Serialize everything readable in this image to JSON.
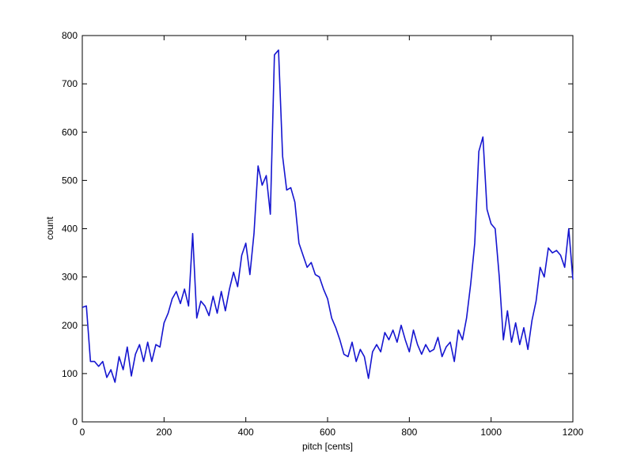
{
  "chart_data": {
    "type": "line",
    "xlabel": "pitch [cents]",
    "ylabel": "count",
    "x": [
      0,
      10,
      20,
      30,
      40,
      50,
      60,
      70,
      80,
      90,
      100,
      110,
      120,
      130,
      140,
      150,
      160,
      170,
      180,
      190,
      200,
      210,
      220,
      230,
      240,
      250,
      260,
      270,
      280,
      290,
      300,
      310,
      320,
      330,
      340,
      350,
      360,
      370,
      380,
      390,
      400,
      410,
      420,
      430,
      440,
      450,
      460,
      470,
      480,
      490,
      500,
      510,
      520,
      530,
      540,
      550,
      560,
      570,
      580,
      590,
      600,
      610,
      620,
      630,
      640,
      650,
      660,
      670,
      680,
      690,
      700,
      710,
      720,
      730,
      740,
      750,
      760,
      770,
      780,
      790,
      800,
      810,
      820,
      830,
      840,
      850,
      860,
      870,
      880,
      890,
      900,
      910,
      920,
      930,
      940,
      950,
      960,
      970,
      980,
      990,
      1000,
      1010,
      1020,
      1030,
      1040,
      1050,
      1060,
      1070,
      1080,
      1090,
      1100,
      1110,
      1120,
      1130,
      1140,
      1150,
      1160,
      1170,
      1180,
      1190,
      1200
    ],
    "series": [
      {
        "color": "#1515d0",
        "values": [
          237,
          240,
          125,
          125,
          115,
          125,
          92,
          108,
          82,
          135,
          108,
          155,
          95,
          140,
          160,
          125,
          165,
          125,
          160,
          155,
          205,
          225,
          255,
          270,
          245,
          275,
          240,
          390,
          215,
          250,
          240,
          220,
          260,
          225,
          270,
          230,
          275,
          310,
          280,
          345,
          370,
          305,
          390,
          530,
          490,
          510,
          430,
          760,
          770,
          550,
          480,
          485,
          455,
          370,
          345,
          320,
          330,
          305,
          300,
          275,
          255,
          215,
          195,
          170,
          140,
          135,
          165,
          125,
          150,
          135,
          90,
          145,
          160,
          145,
          185,
          170,
          190,
          165,
          200,
          170,
          145,
          190,
          160,
          140,
          160,
          145,
          150,
          175,
          135,
          155,
          165,
          125,
          190,
          170,
          215,
          285,
          370,
          560,
          590,
          440,
          410,
          400,
          300,
          170,
          230,
          165,
          205,
          160,
          195,
          150,
          210,
          250,
          320,
          300,
          360,
          350,
          355,
          345,
          320,
          400,
          295
        ]
      }
    ],
    "xlim": [
      0,
      1200
    ],
    "xticks": [
      0,
      200,
      400,
      600,
      800,
      1000,
      1200
    ],
    "ylim": [
      0,
      800
    ],
    "yticks": [
      0,
      100,
      200,
      300,
      400,
      500,
      600,
      700,
      800
    ]
  }
}
